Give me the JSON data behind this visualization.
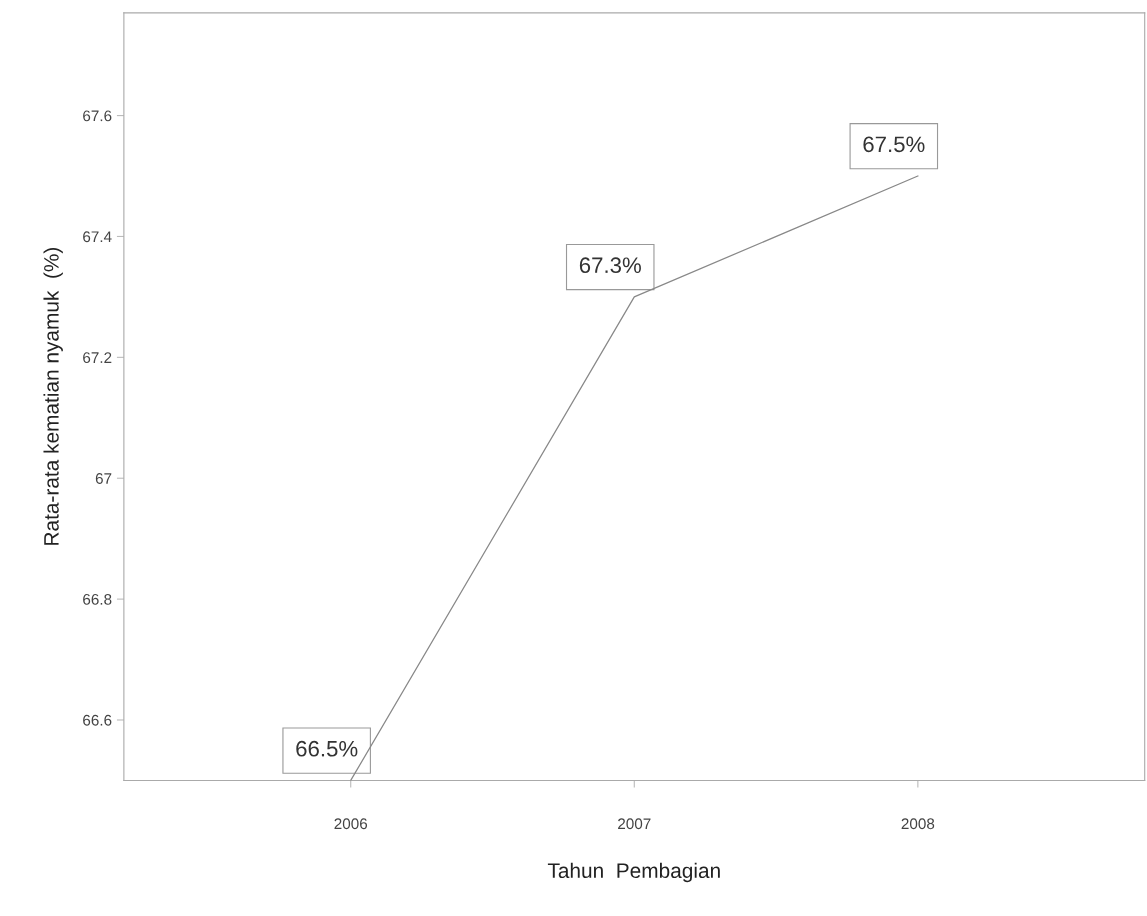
{
  "chart_data": {
    "type": "line",
    "xlabel": "Tahun  Pembagian",
    "ylabel": "Rata-rata kematian nyamuk  (%)",
    "categories": [
      "2006",
      "2007",
      "2008"
    ],
    "series": [
      {
        "color": "#888888",
        "values": [
          66.5,
          67.3,
          67.5
        ],
        "value_labels": [
          "66.5%",
          "67.3%",
          "67.5%"
        ]
      }
    ],
    "ylim": [
      66.5,
      67.77
    ],
    "yticks": [
      66.6,
      66.8,
      {
        "value": 67.0,
        "label": "67"
      },
      67.2,
      67.4,
      67.6
    ],
    "grid": false,
    "marker": "none",
    "line_style": "solid"
  }
}
